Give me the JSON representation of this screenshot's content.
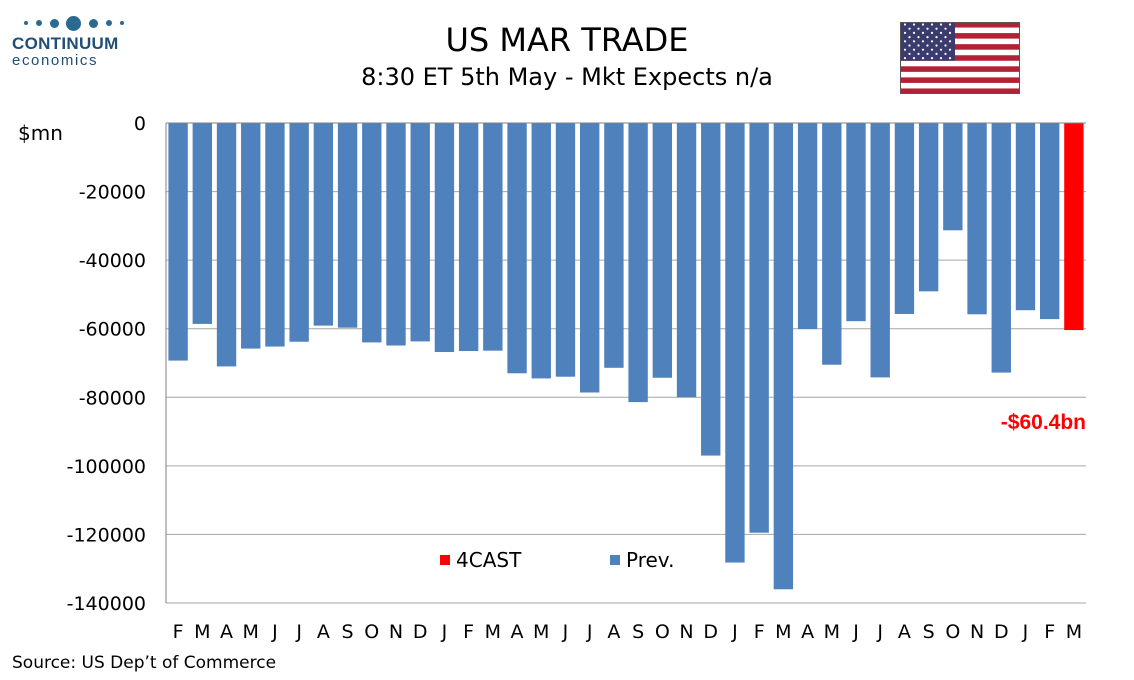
{
  "logo": {
    "brand": "CONTINUUM",
    "sub": "economics"
  },
  "header": {
    "title": "US MAR TRADE",
    "subtitle": "8:30 ET 5th May - Mkt Expects n/a"
  },
  "colors": {
    "prev": "#4f81bd",
    "forecast": "#ff0000",
    "grid": "#a6a6a6",
    "logo": "#1f4e79"
  },
  "source": "Source: US Dep’t of Commerce",
  "chart_data": {
    "type": "bar",
    "ylabel": "$mn",
    "ylim": [
      -140000,
      0
    ],
    "yticks": [
      0,
      -20000,
      -40000,
      -60000,
      -80000,
      -100000,
      -120000,
      -140000
    ],
    "grid": true,
    "legend_position": "bottom-center",
    "categories": [
      "F",
      "M",
      "A",
      "M",
      "J",
      "J",
      "A",
      "S",
      "O",
      "N",
      "D",
      "J",
      "F",
      "M",
      "A",
      "M",
      "J",
      "J",
      "A",
      "S",
      "O",
      "N",
      "D",
      "J",
      "F",
      "M",
      "A",
      "M",
      "J",
      "J",
      "A",
      "S",
      "O",
      "N",
      "D",
      "J",
      "F",
      "M"
    ],
    "series": [
      {
        "name": "Prev.",
        "values": [
          -69300,
          -58600,
          -71000,
          -65800,
          -65200,
          -63800,
          -59100,
          -59700,
          -64000,
          -64900,
          -63700,
          -66800,
          -66500,
          -66400,
          -73000,
          -74500,
          -74000,
          -78600,
          -71400,
          -81400,
          -74300,
          -80000,
          -97000,
          -128200,
          -119500,
          -136000,
          -60100,
          -70500,
          -57800,
          -74200,
          -55700,
          -49100,
          -31300,
          -55800,
          -72800,
          -54600,
          -57200,
          null
        ]
      },
      {
        "name": "4CAST",
        "values": [
          null,
          null,
          null,
          null,
          null,
          null,
          null,
          null,
          null,
          null,
          null,
          null,
          null,
          null,
          null,
          null,
          null,
          null,
          null,
          null,
          null,
          null,
          null,
          null,
          null,
          null,
          null,
          null,
          null,
          null,
          null,
          null,
          null,
          null,
          null,
          null,
          null,
          -60400
        ]
      }
    ],
    "annotations": [
      {
        "text": "-$60.4bn",
        "category_index": 37
      }
    ]
  }
}
